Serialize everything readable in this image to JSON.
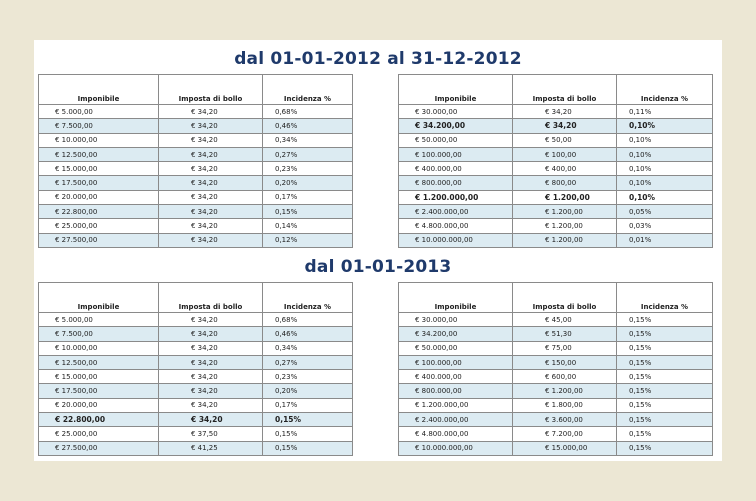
{
  "section1": {
    "title": "dal 01-01-2012 al 31-12-2012",
    "headers": [
      "Imponibile",
      "Imposta di bollo",
      "Incidenza %"
    ],
    "left": [
      [
        "€ 5.000,00",
        "€ 34,20",
        "0,68%"
      ],
      [
        "€ 7.500,00",
        "€ 34,20",
        "0,46%"
      ],
      [
        "€ 10.000,00",
        "€ 34,20",
        "0,34%"
      ],
      [
        "€ 12.500,00",
        "€ 34,20",
        "0,27%"
      ],
      [
        "€ 15.000,00",
        "€ 34,20",
        "0,23%"
      ],
      [
        "€ 17.500,00",
        "€ 34,20",
        "0,20%"
      ],
      [
        "€ 20.000,00",
        "€ 34,20",
        "0,17%"
      ],
      [
        "€ 22.800,00",
        "€ 34,20",
        "0,15%"
      ],
      [
        "€ 25.000,00",
        "€ 34,20",
        "0,14%"
      ],
      [
        "€ 27.500,00",
        "€ 34,20",
        "0,12%"
      ]
    ],
    "right": [
      [
        "€ 30.000,00",
        "€ 34,20",
        "0,11%"
      ],
      [
        "€ 34.200,00",
        "€ 34,20",
        "0,10%"
      ],
      [
        "€ 50.000,00",
        "€ 50,00",
        "0,10%"
      ],
      [
        "€ 100.000,00",
        "€ 100,00",
        "0,10%"
      ],
      [
        "€ 400.000,00",
        "€ 400,00",
        "0,10%"
      ],
      [
        "€ 800.000,00",
        "€ 800,00",
        "0,10%"
      ],
      [
        "€ 1.200.000,00",
        "€ 1.200,00",
        "0,10%"
      ],
      [
        "€ 2.400.000,00",
        "€ 1.200,00",
        "0,05%"
      ],
      [
        "€ 4.800.000,00",
        "€ 1.200,00",
        "0,03%"
      ],
      [
        "€ 10.000.000,00",
        "€ 1.200,00",
        "0,01%"
      ]
    ],
    "left_bold_rows": [],
    "right_bold_rows": [
      1,
      6
    ]
  },
  "section2": {
    "title": "dal 01-01-2013",
    "headers": [
      "Imponibile",
      "Imposta di bollo",
      "Incidenza %"
    ],
    "left": [
      [
        "€ 5.000,00",
        "€ 34,20",
        "0,68%"
      ],
      [
        "€ 7.500,00",
        "€ 34,20",
        "0,46%"
      ],
      [
        "€ 10.000,00",
        "€ 34,20",
        "0,34%"
      ],
      [
        "€ 12.500,00",
        "€ 34,20",
        "0,27%"
      ],
      [
        "€ 15.000,00",
        "€ 34,20",
        "0,23%"
      ],
      [
        "€ 17.500,00",
        "€ 34,20",
        "0,20%"
      ],
      [
        "€ 20.000,00",
        "€ 34,20",
        "0,17%"
      ],
      [
        "€ 22.800,00",
        "€ 34,20",
        "0,15%"
      ],
      [
        "€ 25.000,00",
        "€ 37,50",
        "0,15%"
      ],
      [
        "€ 27.500,00",
        "€ 41,25",
        "0,15%"
      ]
    ],
    "right": [
      [
        "€ 30.000,00",
        "€ 45,00",
        "0,15%"
      ],
      [
        "€ 34.200,00",
        "€ 51,30",
        "0,15%"
      ],
      [
        "€ 50.000,00",
        "€ 75,00",
        "0,15%"
      ],
      [
        "€ 100.000,00",
        "€ 150,00",
        "0,15%"
      ],
      [
        "€ 400.000,00",
        "€ 600,00",
        "0,15%"
      ],
      [
        "€ 800.000,00",
        "€ 1.200,00",
        "0,15%"
      ],
      [
        "€ 1.200.000,00",
        "€ 1.800,00",
        "0,15%"
      ],
      [
        "€ 2.400.000,00",
        "€ 3.600,00",
        "0,15%"
      ],
      [
        "€ 4.800.000,00",
        "€ 7.200,00",
        "0,15%"
      ],
      [
        "€ 10.000.000,00",
        "€ 15.000,00",
        "0,15%"
      ]
    ],
    "left_bold_rows": [
      7
    ],
    "right_bold_rows": []
  },
  "colors": {
    "background": "#ece7d4",
    "title": "#1f3a6b",
    "alt_row": "#dcebf2",
    "border": "#8a8a8a"
  }
}
